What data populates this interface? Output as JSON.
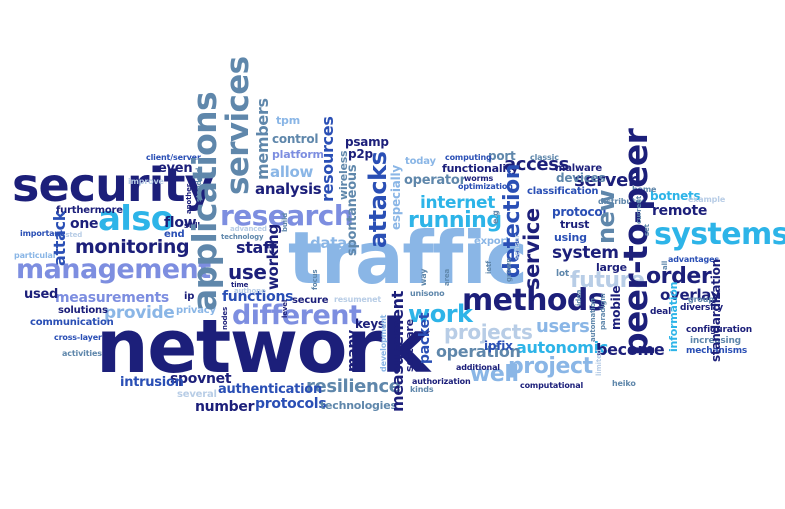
{
  "colors": {
    "navy": "#1c1f7a",
    "blue": "#2a4fb5",
    "steel": "#5f87ab",
    "light_blue": "#8ab6e6",
    "sky": "#2db4e8",
    "pale": "#b8cde6",
    "periwinkle": "#7d8ee0"
  },
  "words": {
    "network": "network",
    "traffic": "traffic",
    "security": "security",
    "management": "management",
    "applications": "applications",
    "services": "services",
    "research": "research",
    "methods": "methods",
    "systems": "systems",
    "peer_to_peer": "peer-to-peer",
    "also": "also",
    "attacks": "attacks",
    "different": "different",
    "monitoring": "monitoring",
    "detection": "detection",
    "service": "service",
    "resilience": "resilience",
    "work": "work",
    "projects": "projects",
    "project": "project",
    "future": "future",
    "order": "order",
    "new": "new",
    "internet": "internet",
    "running": "running",
    "autonomic": "autonomic",
    "operation": "operation",
    "well": "well",
    "users": "users",
    "measurement": "measurement",
    "measurements": "measurements",
    "analysis": "analysis",
    "staff": "staff",
    "use": "use",
    "functions": "functions",
    "provide": "provide",
    "resources": "resources",
    "members": "members",
    "allow": "allow",
    "working": "working",
    "system": "system",
    "server": "server",
    "access": "access",
    "become": "become",
    "overlay": "overlay",
    "remote": "remote",
    "botnets": "botnets",
    "authentication": "authentication",
    "protocols": "protocols",
    "number": "number",
    "spovnet": "spovnet",
    "intrusion": "intrusion",
    "technologies": "technologies",
    "keys": "keys",
    "many": "many",
    "packet": "packet",
    "software": "software",
    "data": "data",
    "flow": "flow",
    "attack": "attack",
    "one": "one",
    "used": "used",
    "solutions": "solutions",
    "communication": "communication",
    "furthermore": "furthermore",
    "even": "even",
    "ipfix": "ipfix",
    "functionality": "functionality",
    "operator": "operator",
    "port": "port",
    "today": "today",
    "p2p": "p2p",
    "psamp": "psamp",
    "control": "control",
    "platform": "platform",
    "tpm": "tpm",
    "client_server": "client/server",
    "standardization": "standardization",
    "configuration": "configuration",
    "increasing": "increasing",
    "mechanisms": "mechanisms",
    "information": "information",
    "mobile": "mobile",
    "trust": "trust",
    "using": "using",
    "protocol": "protocol",
    "devices": "devices",
    "malware": "malware",
    "classification": "classification",
    "worms": "worms",
    "optimization": "optimization",
    "computing": "computing",
    "classic": "classic",
    "distributed": "distributed",
    "especially": "especially",
    "export": "export",
    "eg": "e.g",
    "large": "large",
    "lot": "lot",
    "deal": "deal",
    "diversity": "diversity",
    "advantages": "advantages",
    "group": "group",
    "example": "example",
    "home": "home",
    "current": "current",
    "heiko": "heiko",
    "computational": "computational",
    "authorization": "authorization",
    "additional": "additional",
    "kinds": "kinds",
    "secure": "secure",
    "resumenet": "resumenet",
    "privacy": "privacy",
    "nodes": "nodes",
    "time": "time",
    "level": "level",
    "focus": "focus",
    "wireless": "wireless",
    "spontaneous": "spontaneous",
    "development": "development",
    "unisono": "unisono",
    "way": "way",
    "area": "area",
    "ietf": "ietf",
    "grown": "grown",
    "sensor": "sensor",
    "idea": "idea",
    "paradigm": "paradigm",
    "automation": "automation",
    "limited": "limited",
    "set": "set",
    "all": "all",
    "ip": "ip",
    "still": "still",
    "end": "end",
    "another": "another",
    "standard": "standard",
    "advanced": "advanced",
    "technology": "technology",
    "authone": "authone",
    "build": "build",
    "trusted": "trusted",
    "improve": "improve",
    "important": "important",
    "particular": "particular",
    "cross_layer": "cross-layer",
    "activities": "activities",
    "several": "several"
  }
}
